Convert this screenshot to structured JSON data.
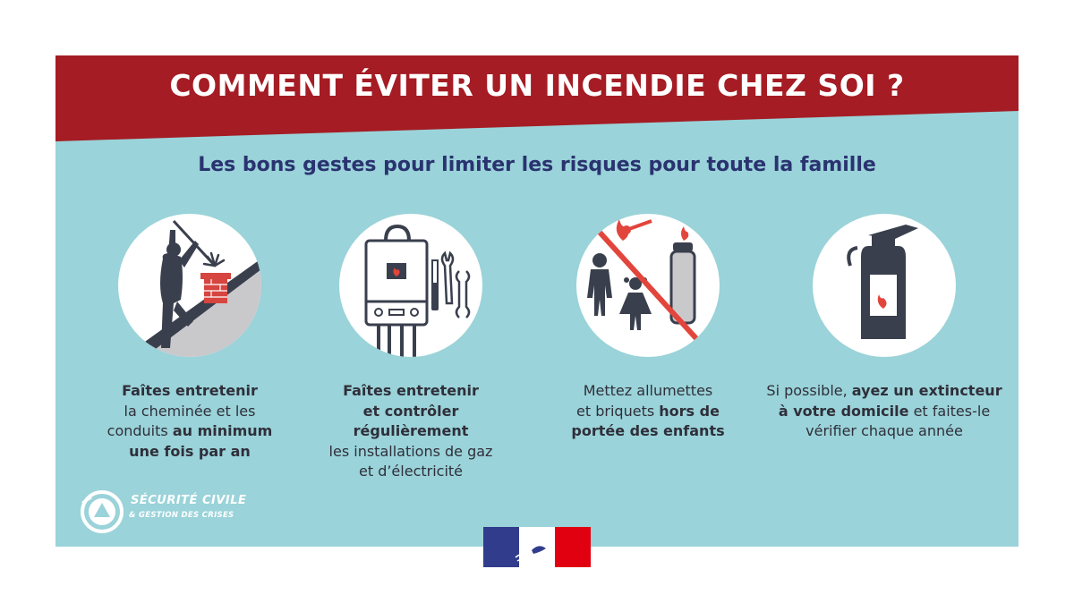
{
  "colors": {
    "banner": "#a51c24",
    "background": "#9ad3d9",
    "subtitle": "#2a3370",
    "icons": "#3a3f4d"
  },
  "header": {
    "title": "COMMENT ÉVITER UN INCENDIE CHEZ SOI ?"
  },
  "subtitle": "Les bons gestes pour limiter les risques pour toute la famille",
  "tips": [
    {
      "icon": "chimney-sweep-icon",
      "lines": [
        [
          {
            "t": "Faîtes entretenir",
            "b": true
          }
        ],
        [
          {
            "t": "la cheminée et les",
            "b": false
          }
        ],
        [
          {
            "t": "conduits ",
            "b": false
          },
          {
            "t": "au minimum",
            "b": true
          }
        ],
        [
          {
            "t": "une fois par an",
            "b": true
          }
        ]
      ]
    },
    {
      "icon": "boiler-tools-icon",
      "lines": [
        [
          {
            "t": "Faîtes entretenir",
            "b": true
          }
        ],
        [
          {
            "t": "et contrôler",
            "b": true
          }
        ],
        [
          {
            "t": "régulièrement",
            "b": true
          }
        ],
        [
          {
            "t": "les installations de gaz",
            "b": false
          }
        ],
        [
          {
            "t": "et d’électricité",
            "b": false
          }
        ]
      ]
    },
    {
      "icon": "no-matches-children-icon",
      "lines": [
        [
          {
            "t": "Mettez allumettes",
            "b": false
          }
        ],
        [
          {
            "t": "et briquets ",
            "b": false
          },
          {
            "t": "hors de",
            "b": true
          }
        ],
        [
          {
            "t": "portée des enfants",
            "b": true
          }
        ]
      ]
    },
    {
      "icon": "fire-extinguisher-icon",
      "lines": [
        [
          {
            "t": "Si possible, ",
            "b": false
          },
          {
            "t": "ayez un extincteur",
            "b": true
          }
        ],
        [
          {
            "t": "à votre domicile",
            "b": true
          },
          {
            "t": " et faites-le",
            "b": false
          }
        ],
        [
          {
            "t": "vérifier chaque année",
            "b": false
          }
        ]
      ]
    }
  ],
  "logo": {
    "line1": "SÉCURITÉ CIVILE",
    "line2": "& GESTION DES CRISES"
  },
  "flag": {
    "blue": "#313d8c",
    "red": "#e1000f"
  }
}
